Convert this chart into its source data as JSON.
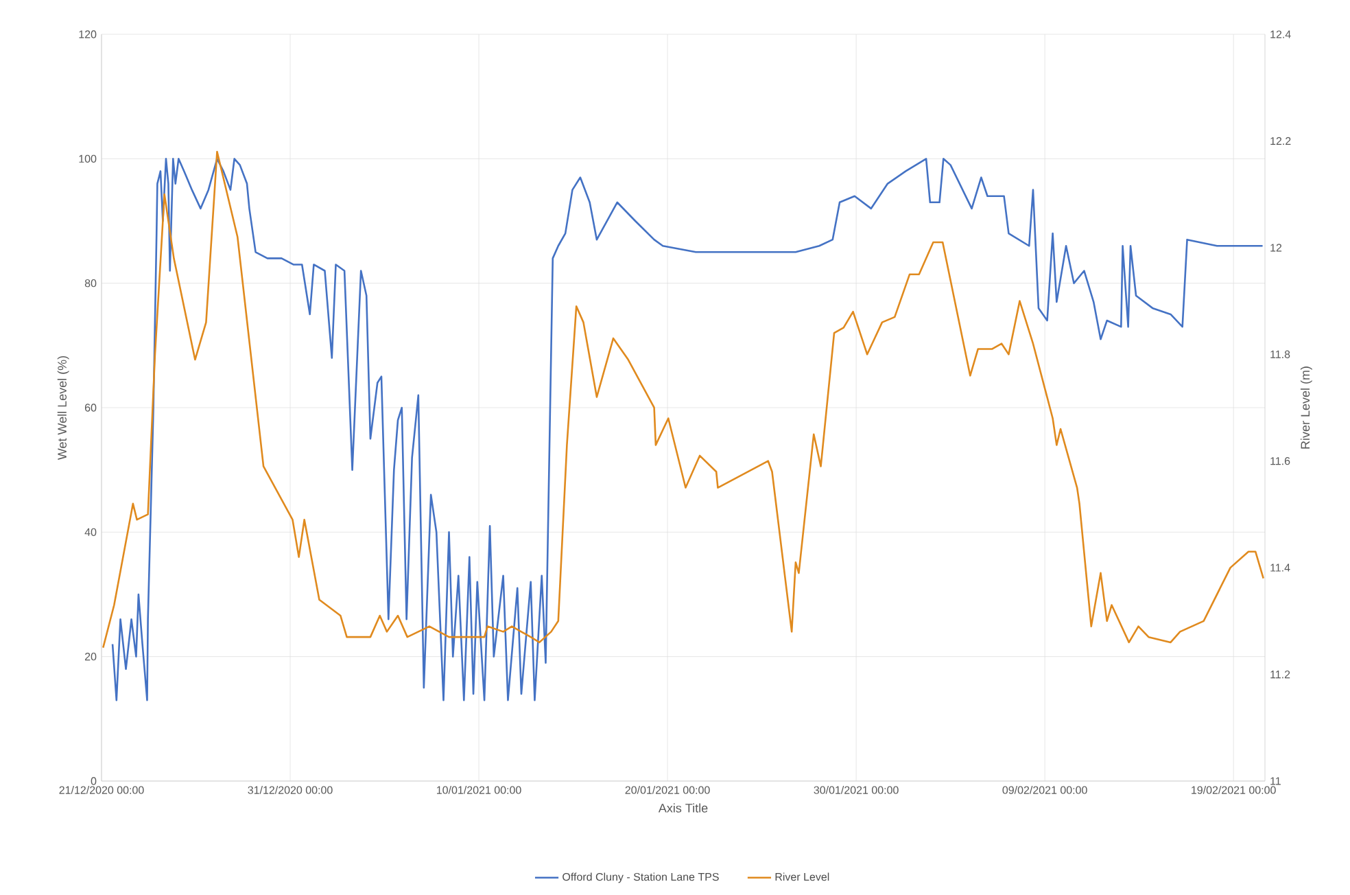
{
  "chart_data": {
    "type": "line",
    "xlabel": "Axis Title",
    "ylabel": "Wet Well Level (%)",
    "y2label": "River Level (m)",
    "xlim": [
      "2020-12-21T00:00",
      "2021-02-20T16:00"
    ],
    "xticks": [
      {
        "value": "2020-12-21T00:00",
        "label": "21/12/2020 00:00"
      },
      {
        "value": "2020-12-31T00:00",
        "label": "31/12/2020 00:00"
      },
      {
        "value": "2021-01-10T00:00",
        "label": "10/01/2021 00:00"
      },
      {
        "value": "2021-01-20T00:00",
        "label": "20/01/2021 00:00"
      },
      {
        "value": "2021-01-30T00:00",
        "label": "30/01/2021 00:00"
      },
      {
        "value": "2021-02-09T00:00",
        "label": "09/02/2021 00:00"
      },
      {
        "value": "2021-02-19T00:00",
        "label": "19/02/2021 00:00"
      }
    ],
    "ylim": [
      0,
      120
    ],
    "yticks": [
      0,
      20,
      40,
      60,
      80,
      100,
      120
    ],
    "y2lim": [
      11,
      12.4
    ],
    "y2ticks": [
      11,
      11.2,
      11.4,
      11.6,
      11.8,
      12,
      12.2,
      12.4
    ],
    "grid": true,
    "legend": "bottom",
    "marker": "none",
    "line_style": "solid",
    "series": [
      {
        "name": "Offord Cluny - Station Lane TPS",
        "color": "#4472c4",
        "x": [
          "2020-12-21T14:00",
          "2020-12-21T19:00",
          "2020-12-22T00:00",
          "2020-12-22T07:00",
          "2020-12-22T14:00",
          "2020-12-22T20:00",
          "2020-12-22T23:00",
          "2020-12-23T04:00",
          "2020-12-23T10:00",
          "2020-12-23T11:00",
          "2020-12-23T18:00",
          "2020-12-23T22:00",
          "2020-12-23T23:00",
          "2020-12-24T03:00",
          "2020-12-24T06:00",
          "2020-12-24T10:00",
          "2020-12-24T13:00",
          "2020-12-24T15:00",
          "2020-12-24T19:00",
          "2020-12-24T22:00",
          "2020-12-25T02:00",
          "2020-12-25T09:00",
          "2020-12-25T19:00",
          "2020-12-26T06:00",
          "2020-12-26T16:00",
          "2020-12-27T03:00",
          "2020-12-27T11:00",
          "2020-12-27T20:00",
          "2020-12-28T01:00",
          "2020-12-28T08:00",
          "2020-12-28T17:00",
          "2020-12-28T20:00",
          "2020-12-29T04:00",
          "2020-12-29T19:00",
          "2020-12-30T13:00",
          "2020-12-31T04:00",
          "2020-12-31T15:00",
          "2021-01-01T01:00",
          "2021-01-01T06:00",
          "2021-01-01T20:00",
          "2021-01-02T05:00",
          "2021-01-02T10:00",
          "2021-01-02T21:00",
          "2021-01-03T07:00",
          "2021-01-03T18:00",
          "2021-01-04T01:00",
          "2021-01-04T06:00",
          "2021-01-04T15:00",
          "2021-01-04T20:00",
          "2021-01-05T05:00",
          "2021-01-05T12:00",
          "2021-01-05T17:00",
          "2021-01-05T22:00",
          "2021-01-06T04:00",
          "2021-01-06T11:00",
          "2021-01-06T19:00",
          "2021-01-07T02:00",
          "2021-01-07T11:00",
          "2021-01-07T18:00",
          "2021-01-08T03:00",
          "2021-01-08T10:00",
          "2021-01-08T15:00",
          "2021-01-08T22:00",
          "2021-01-09T05:00",
          "2021-01-09T12:00",
          "2021-01-09T17:00",
          "2021-01-09T22:00",
          "2021-01-10T07:00",
          "2021-01-10T14:00",
          "2021-01-10T19:00",
          "2021-01-11T07:00",
          "2021-01-11T13:00",
          "2021-01-12T01:00",
          "2021-01-12T06:00",
          "2021-01-12T18:00",
          "2021-01-12T23:00",
          "2021-01-13T08:00",
          "2021-01-13T13:00",
          "2021-01-13T22:00",
          "2021-01-14T05:00",
          "2021-01-14T14:00",
          "2021-01-14T23:00",
          "2021-01-15T09:00",
          "2021-01-15T21:00",
          "2021-01-16T06:00",
          "2021-01-17T08:00",
          "2021-01-18T07:00",
          "2021-01-19T07:00",
          "2021-01-19T18:00",
          "2021-01-21T12:00",
          "2021-01-22T23:00",
          "2021-01-24T20:00",
          "2021-01-26T19:00",
          "2021-01-28T01:00",
          "2021-01-28T18:00",
          "2021-01-29T03:00",
          "2021-01-29T22:00",
          "2021-01-30T19:00",
          "2021-01-31T16:00",
          "2021-02-01T15:00",
          "2021-02-02T17:00",
          "2021-02-02T22:00",
          "2021-02-03T10:00",
          "2021-02-03T15:00",
          "2021-02-04T00:00",
          "2021-02-05T03:00",
          "2021-02-05T15:00",
          "2021-02-05T23:00",
          "2021-02-06T20:00",
          "2021-02-07T02:00",
          "2021-02-08T04:00",
          "2021-02-08T09:00",
          "2021-02-08T16:00",
          "2021-02-09T03:00",
          "2021-02-09T10:00",
          "2021-02-09T15:00",
          "2021-02-10T03:00",
          "2021-02-10T13:00",
          "2021-02-11T02:00",
          "2021-02-11T14:00",
          "2021-02-11T23:00",
          "2021-02-12T07:00",
          "2021-02-13T01:00",
          "2021-02-13T03:00",
          "2021-02-13T10:00",
          "2021-02-13T13:00",
          "2021-02-13T20:00",
          "2021-02-14T17:00",
          "2021-02-15T16:00",
          "2021-02-16T07:00",
          "2021-02-16T13:00",
          "2021-02-18T03:00",
          "2021-02-20T00:00",
          "2021-02-20T13:00"
        ],
        "values": [
          22,
          13,
          26,
          18,
          26,
          20,
          30,
          22,
          13,
          26,
          60,
          88,
          96,
          98,
          90,
          100,
          96,
          82,
          100,
          96,
          100,
          98,
          95,
          92,
          95,
          100,
          98,
          95,
          100,
          99,
          96,
          92,
          85,
          84,
          84,
          83,
          83,
          75,
          83,
          82,
          68,
          83,
          82,
          50,
          82,
          78,
          55,
          64,
          65,
          26,
          50,
          58,
          60,
          26,
          52,
          62,
          15,
          46,
          40,
          13,
          40,
          20,
          33,
          13,
          36,
          14,
          32,
          13,
          41,
          20,
          33,
          13,
          31,
          14,
          32,
          13,
          33,
          19,
          84,
          86,
          88,
          95,
          97,
          93,
          87,
          93,
          90,
          87,
          86,
          85,
          85,
          85,
          85,
          86,
          87,
          93,
          94,
          92,
          96,
          98,
          100,
          93,
          93,
          100,
          99,
          92,
          97,
          94,
          94,
          88,
          86,
          95,
          76,
          74,
          88,
          77,
          86,
          80,
          82,
          77,
          71,
          74,
          73,
          86,
          73,
          86,
          78,
          76,
          75,
          73,
          87,
          86,
          86,
          86
        ]
      },
      {
        "name": "River Level",
        "color": "#e08a1e",
        "axis": "y2",
        "x": [
          "2020-12-21T02:00",
          "2020-12-21T16:00",
          "2020-12-22T16:00",
          "2020-12-22T21:00",
          "2020-12-23T11:00",
          "2020-12-23T20:00",
          "2020-12-24T08:00",
          "2020-12-24T20:00",
          "2020-12-25T23:00",
          "2020-12-26T13:00",
          "2020-12-27T03:00",
          "2020-12-28T05:00",
          "2020-12-29T14:00",
          "2020-12-31T03:00",
          "2020-12-31T11:00",
          "2020-12-31T18:00",
          "2021-01-01T13:00",
          "2021-01-02T16:00",
          "2021-01-03T00:00",
          "2021-01-04T06:00",
          "2021-01-04T18:00",
          "2021-01-05T03:00",
          "2021-01-05T17:00",
          "2021-01-06T05:00",
          "2021-01-07T09:00",
          "2021-01-08T10:00",
          "2021-01-10T07:00",
          "2021-01-10T11:00",
          "2021-01-11T07:00",
          "2021-01-11T18:00",
          "2021-01-12T18:00",
          "2021-01-13T05:00",
          "2021-01-13T20:00",
          "2021-01-14T05:00",
          "2021-01-14T16:00",
          "2021-01-15T04:00",
          "2021-01-15T13:00",
          "2021-01-16T06:00",
          "2021-01-17T03:00",
          "2021-01-17T22:00",
          "2021-01-19T07:00",
          "2021-01-19T09:00",
          "2021-01-20T01:00",
          "2021-01-20T23:00",
          "2021-01-21T17:00",
          "2021-01-22T14:00",
          "2021-01-22T16:00",
          "2021-01-25T08:00",
          "2021-01-25T13:00",
          "2021-01-26T14:00",
          "2021-01-26T19:00",
          "2021-01-26T23:00",
          "2021-01-27T18:00",
          "2021-01-28T03:00",
          "2021-01-28T20:00",
          "2021-01-29T08:00",
          "2021-01-29T20:00",
          "2021-01-30T14:00",
          "2021-01-31T09:00",
          "2021-02-01T01:00",
          "2021-02-01T20:00",
          "2021-02-02T08:00",
          "2021-02-03T02:00",
          "2021-02-03T14:00",
          "2021-02-05T01:00",
          "2021-02-05T11:00",
          "2021-02-06T05:00",
          "2021-02-06T17:00",
          "2021-02-07T02:00",
          "2021-02-07T16:00",
          "2021-02-08T09:00",
          "2021-02-09T10:00",
          "2021-02-09T15:00",
          "2021-02-09T20:00",
          "2021-02-10T17:00",
          "2021-02-10T20:00",
          "2021-02-11T11:00",
          "2021-02-11T23:00",
          "2021-02-12T07:00",
          "2021-02-12T13:00",
          "2021-02-13T11:00",
          "2021-02-13T23:00",
          "2021-02-14T12:00",
          "2021-02-15T16:00",
          "2021-02-16T04:00",
          "2021-02-17T10:00",
          "2021-02-18T20:00",
          "2021-02-19T19:00",
          "2021-02-20T04:00",
          "2021-02-20T14:00"
        ],
        "values": [
          11.25,
          11.33,
          11.52,
          11.49,
          11.5,
          11.8,
          12.1,
          11.98,
          11.79,
          11.86,
          12.18,
          12.02,
          11.59,
          11.49,
          11.42,
          11.49,
          11.34,
          11.31,
          11.27,
          11.27,
          11.31,
          11.28,
          11.31,
          11.27,
          11.29,
          11.27,
          11.27,
          11.29,
          11.28,
          11.29,
          11.27,
          11.26,
          11.28,
          11.3,
          11.63,
          11.89,
          11.86,
          11.72,
          11.83,
          11.79,
          11.7,
          11.63,
          11.68,
          11.55,
          11.61,
          11.58,
          11.55,
          11.6,
          11.58,
          11.28,
          11.41,
          11.39,
          11.65,
          11.59,
          11.84,
          11.85,
          11.88,
          11.8,
          11.86,
          11.87,
          11.95,
          11.95,
          12.01,
          12.01,
          11.76,
          11.81,
          11.81,
          11.82,
          11.8,
          11.9,
          11.82,
          11.68,
          11.63,
          11.66,
          11.55,
          11.52,
          11.29,
          11.39,
          11.3,
          11.33,
          11.26,
          11.29,
          11.27,
          11.26,
          11.28,
          11.3,
          11.4,
          11.43,
          11.43,
          11.38
        ]
      }
    ]
  }
}
